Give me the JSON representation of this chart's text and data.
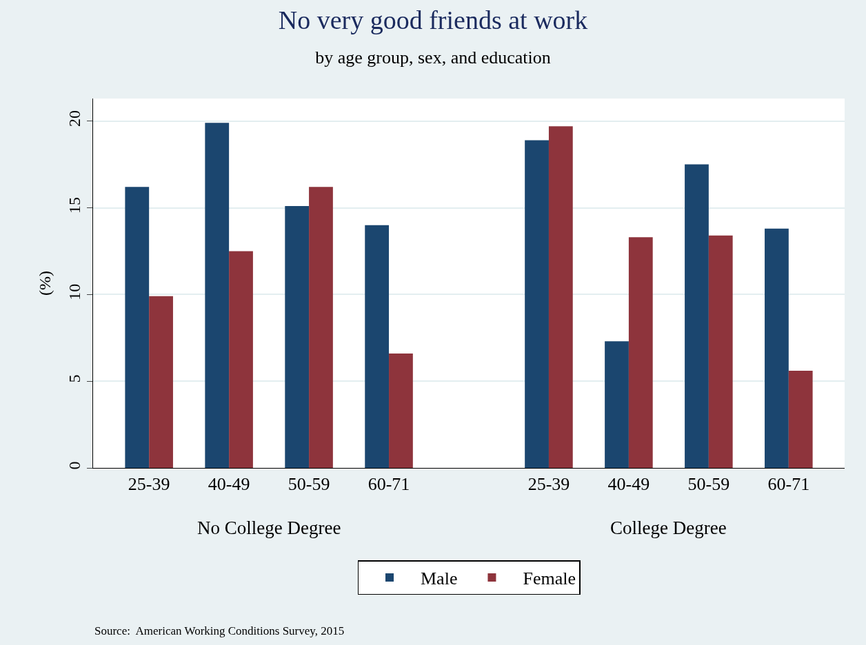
{
  "chart_data": {
    "type": "bar",
    "title": "No very good friends at work",
    "subtitle": "by age group, sex, and education",
    "ylabel": "(%)",
    "categories": [
      "25-39",
      "40-49",
      "50-59",
      "60-71",
      null,
      "25-39",
      "40-49",
      "50-59",
      "60-71"
    ],
    "series": [
      {
        "name": "Male",
        "color": "#1b466f",
        "values": [
          16.2,
          19.9,
          15.1,
          14.0,
          null,
          18.9,
          7.3,
          17.5,
          13.8
        ]
      },
      {
        "name": "Female",
        "color": "#8e343c",
        "values": [
          9.9,
          12.5,
          16.2,
          6.6,
          null,
          19.7,
          13.3,
          13.4,
          5.6
        ]
      }
    ],
    "ylim": [
      0,
      21.3
    ],
    "yticks": [
      0,
      5,
      10,
      15,
      20
    ],
    "grid": "y",
    "legend": "bottom",
    "annotations": [
      "No College Degree",
      "College Degree",
      "Source:  American Working Conditions Survey, 2015"
    ]
  }
}
